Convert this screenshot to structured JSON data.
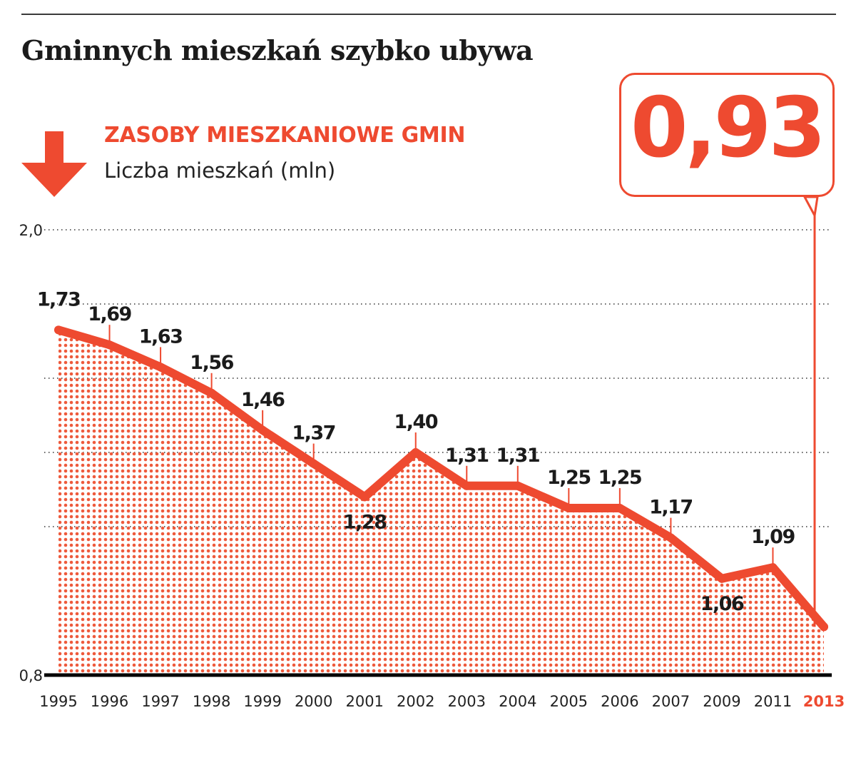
{
  "title": "Gminnych mieszkań szybko ubywa",
  "subtitle": "ZASOBY MIESZKANIOWE GMIN",
  "unit_label": "Liczba mieszkań (mln)",
  "callout": {
    "value": "0,93"
  },
  "icons": {
    "trend": "down-arrow-icon"
  },
  "colors": {
    "accent": "#ee4a30",
    "dots": "#ee5a3c",
    "text": "#1b1b1b",
    "axis": "#000000"
  },
  "chart_data": {
    "type": "area",
    "title": "Gminnych mieszkań szybko ubywa",
    "ylabel": "Liczba mieszkań (mln)",
    "xlabel": "",
    "ylim": [
      0.8,
      2.0
    ],
    "yticks": [
      {
        "value": 0.8,
        "label": "0,8"
      },
      {
        "value": 2.0,
        "label": "2,0"
      }
    ],
    "gridlines": [
      1.2,
      1.4,
      1.6,
      1.8
    ],
    "grid": "horizontal-dotted",
    "categories": [
      "1995",
      "1996",
      "1997",
      "1998",
      "1999",
      "2000",
      "2001",
      "2002",
      "2003",
      "2004",
      "2005",
      "2006",
      "2007",
      "2009",
      "2011",
      "2013"
    ],
    "values": [
      1.73,
      1.69,
      1.63,
      1.56,
      1.46,
      1.37,
      1.28,
      1.4,
      1.31,
      1.31,
      1.25,
      1.25,
      1.17,
      1.06,
      1.09,
      0.93
    ],
    "data_labels": [
      "1,73",
      "1,69",
      "1,63",
      "1,56",
      "1,46",
      "1,37",
      "1,28",
      "1,40",
      "1,31",
      "1,31",
      "1,25",
      "1,25",
      "1,17",
      "1,06",
      "1,09",
      ""
    ],
    "highlight": {
      "category": "2013",
      "value": 0.93
    }
  }
}
